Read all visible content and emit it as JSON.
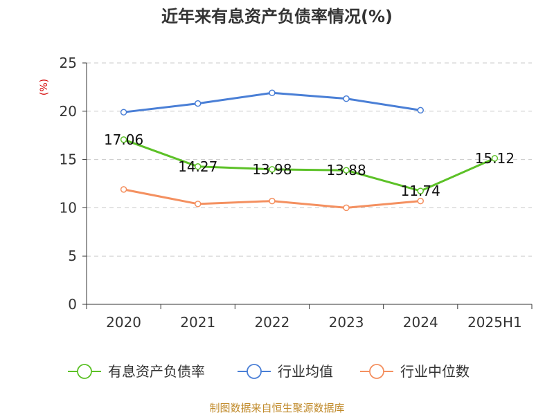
{
  "chart_data": {
    "type": "line",
    "title": "近年来有息资产负债率情况(%)",
    "unit": "(%)",
    "categories": [
      "2020",
      "2021",
      "2022",
      "2023",
      "2024",
      "2025H1"
    ],
    "ylim": [
      0,
      25
    ],
    "yticks": [
      0,
      5,
      10,
      15,
      20,
      25
    ],
    "grid": true,
    "legend_position": "bottom",
    "series": [
      {
        "name": "有息资产负债率",
        "color": "#5cc127",
        "values": [
          17.06,
          14.27,
          13.98,
          13.88,
          11.74,
          15.12
        ],
        "labels": [
          "17.06",
          "14.27",
          "13.98",
          "13.88",
          "11.74",
          "15.12"
        ]
      },
      {
        "name": "行业均值",
        "color": "#4a7fd6",
        "values": [
          19.9,
          20.8,
          21.9,
          21.3,
          20.1,
          null
        ]
      },
      {
        "name": "行业中位数",
        "color": "#f49060",
        "values": [
          11.9,
          10.4,
          10.7,
          10.0,
          10.7,
          null
        ]
      }
    ],
    "source": "制图数据来自恒生聚源数据库"
  }
}
